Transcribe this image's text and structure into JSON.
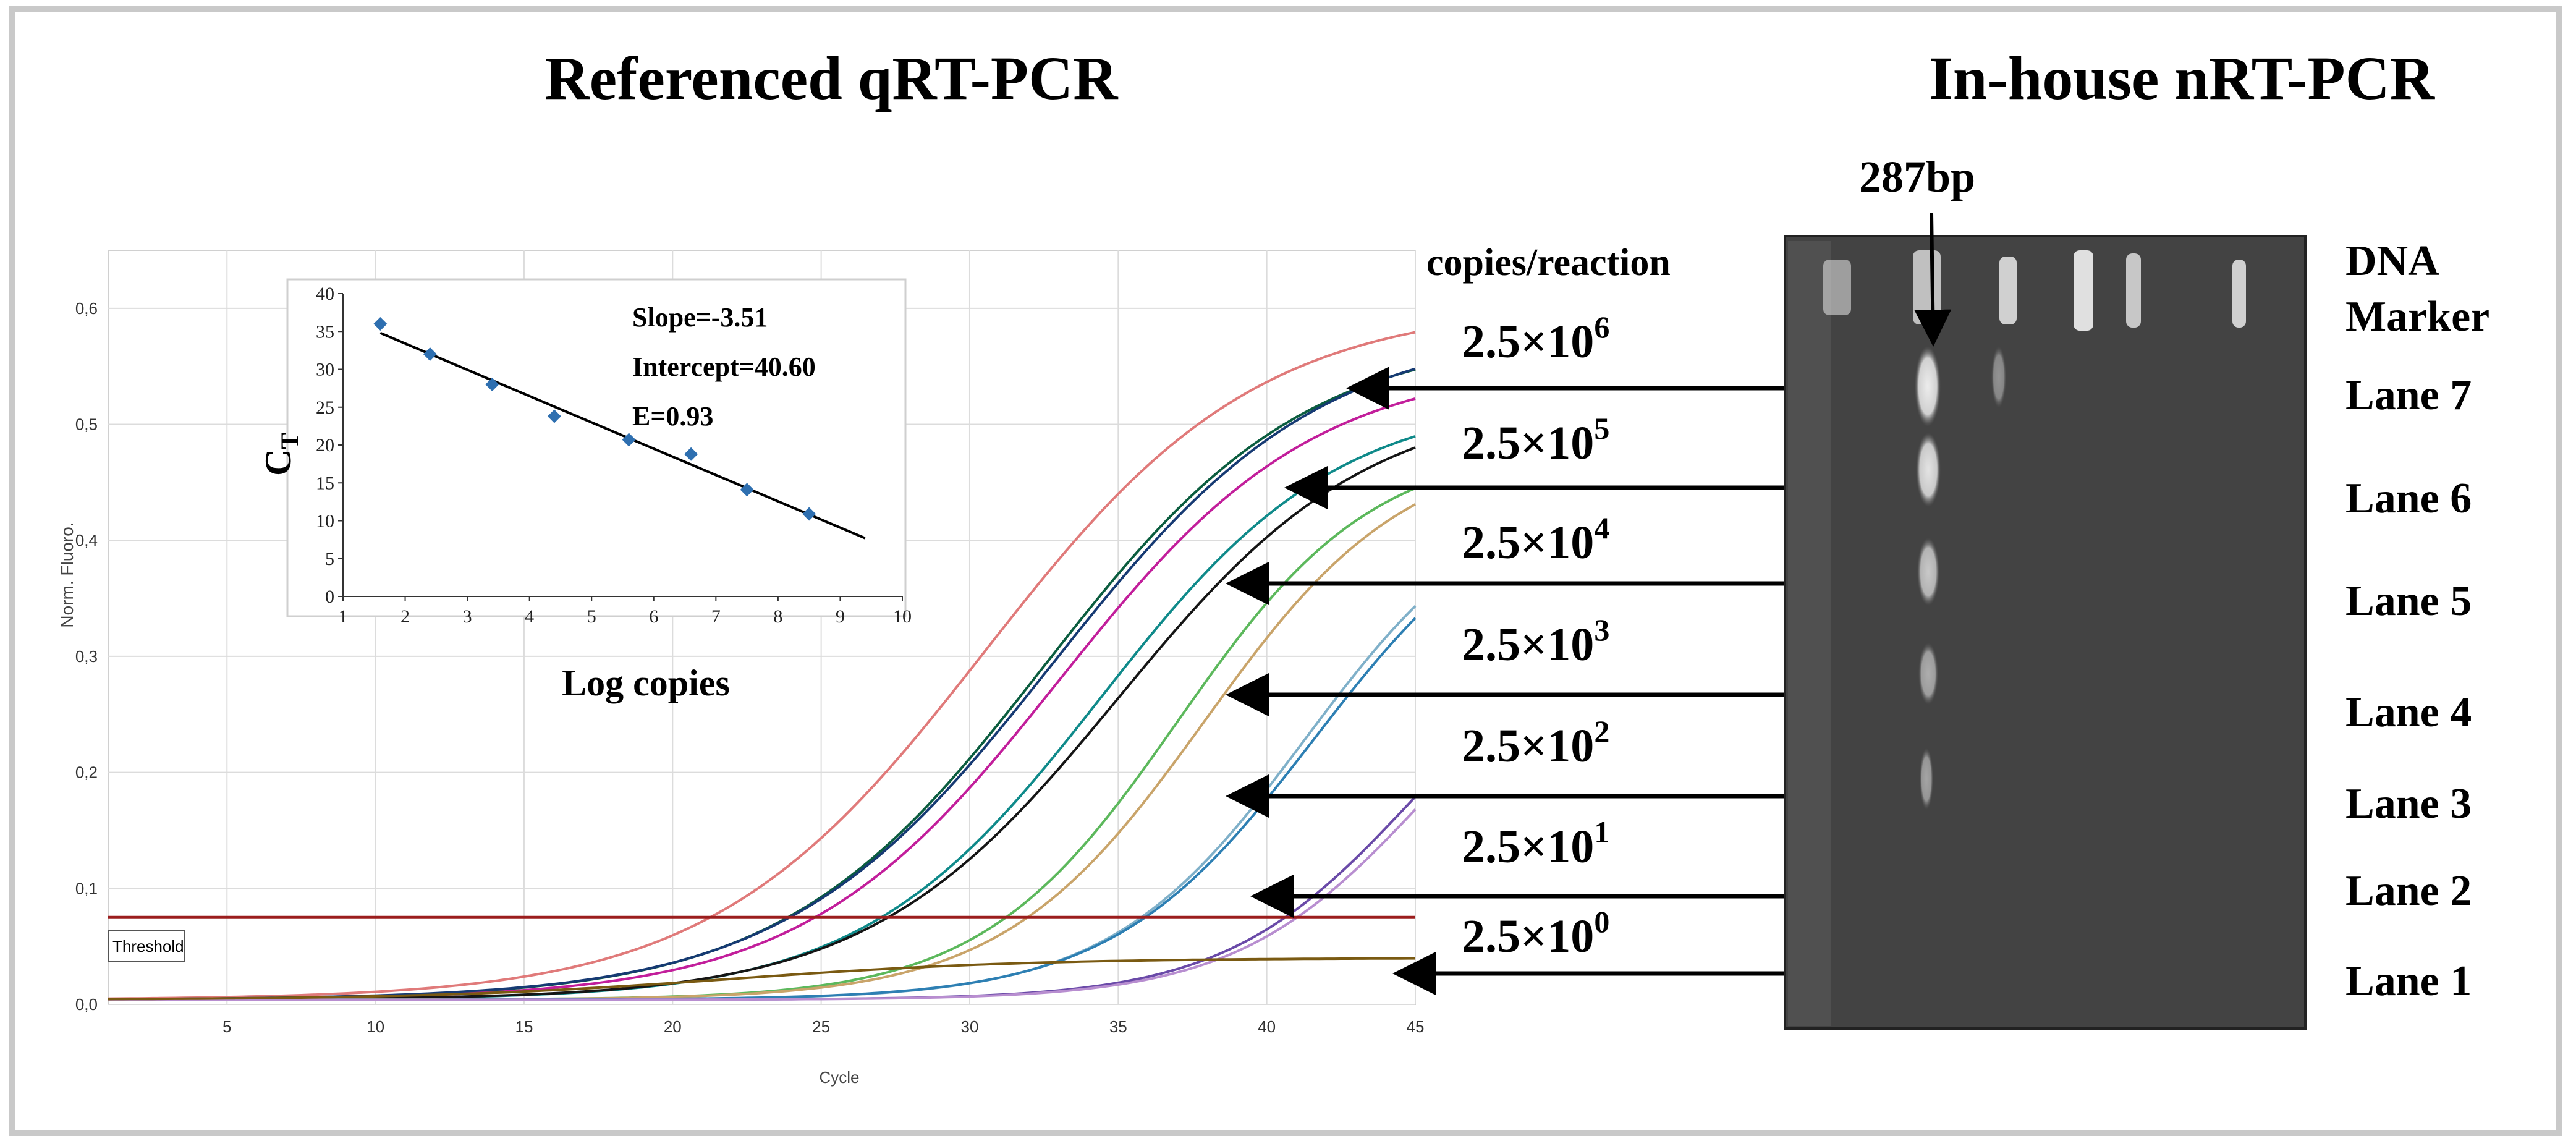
{
  "headings": {
    "left": "Referenced qRT-PCR",
    "right": "In-house nRT-PCR"
  },
  "colors": {
    "threshold": "#9b1d1d",
    "gel_background": "#434343",
    "band": "#e9e9e9",
    "arrow": "#000000",
    "fit_marker": "#2e6fb0"
  },
  "amplification_plot": {
    "type": "line",
    "xlabel": "Cycle",
    "ylabel": "Norm. Fluoro.",
    "xlim": [
      1,
      45
    ],
    "ylim": [
      0,
      0.65
    ],
    "x_ticks": [
      "5",
      "10",
      "15",
      "20",
      "25",
      "30",
      "35",
      "40",
      "45"
    ],
    "y_ticks": [
      "0,0",
      "0,1",
      "0,2",
      "0,3",
      "0,4",
      "0,5",
      "0,6"
    ],
    "threshold_label": "Threshold",
    "threshold_value": 0.075,
    "grid": true,
    "curves": [
      {
        "color": "#e07a7a",
        "plateau": 0.6,
        "midpoint_cycle": 30.5,
        "slope": 4.6
      },
      {
        "color": "#0b5d3f",
        "plateau": 0.575,
        "midpoint_cycle": 32.5,
        "slope": 4.4
      },
      {
        "color": "#163a73",
        "plateau": 0.58,
        "midpoint_cycle": 32.8,
        "slope": 4.5
      },
      {
        "color": "#c21e9b",
        "plateau": 0.55,
        "midpoint_cycle": 33.0,
        "slope": 4.3
      },
      {
        "color": "#0f8a8a",
        "plateau": 0.52,
        "midpoint_cycle": 34.4,
        "slope": 4.0
      },
      {
        "color": "#151515",
        "plateau": 0.52,
        "midpoint_cycle": 35.0,
        "slope": 4.2
      },
      {
        "color": "#5cb85c",
        "plateau": 0.48,
        "midpoint_cycle": 37.0,
        "slope": 3.3
      },
      {
        "color": "#c9a46a",
        "plateau": 0.48,
        "midpoint_cycle": 37.9,
        "slope": 3.4
      },
      {
        "color": "#7fb0c9",
        "plateau": 0.45,
        "midpoint_cycle": 41.3,
        "slope": 3.3
      },
      {
        "color": "#2d7fb3",
        "plateau": 0.45,
        "midpoint_cycle": 41.6,
        "slope": 3.4
      },
      {
        "color": "#6a4aa8",
        "plateau": 0.35,
        "midpoint_cycle": 45.0,
        "slope": 3.2
      },
      {
        "color": "#b88ed0",
        "plateau": 0.35,
        "midpoint_cycle": 45.4,
        "slope": 3.2
      },
      {
        "color": "#7a5a12",
        "plateau": 0.036,
        "midpoint_cycle": 22.0,
        "slope": 5.0
      }
    ]
  },
  "standard_curve": {
    "type": "scatter",
    "xlabel": "Log copies",
    "ylabel": "C",
    "ylabel_sub": "T",
    "xlim": [
      1,
      10
    ],
    "ylim": [
      0,
      40
    ],
    "x_ticks": [
      "1",
      "2",
      "3",
      "4",
      "5",
      "6",
      "7",
      "8",
      "9",
      "10"
    ],
    "y_ticks": [
      "0",
      "5",
      "10",
      "15",
      "20",
      "25",
      "30",
      "35",
      "40"
    ],
    "points": [
      {
        "x": 1.6,
        "y": 36.0
      },
      {
        "x": 2.4,
        "y": 32.0
      },
      {
        "x": 3.4,
        "y": 28.0
      },
      {
        "x": 4.4,
        "y": 23.8
      },
      {
        "x": 5.6,
        "y": 20.7
      },
      {
        "x": 6.6,
        "y": 18.8
      },
      {
        "x": 7.5,
        "y": 14.1
      },
      {
        "x": 8.5,
        "y": 10.9
      }
    ],
    "fit_line": {
      "x0": 1.6,
      "y0": 34.8,
      "x1": 9.4,
      "y1": 7.7
    },
    "annotations": [
      "Slope=-3.51",
      "Intercept=40.60",
      "E=0.93"
    ]
  },
  "copies": {
    "header": "copies/reaction",
    "items": [
      {
        "mantissa": "2.5×10",
        "exponent": "6"
      },
      {
        "mantissa": "2.5×10",
        "exponent": "5"
      },
      {
        "mantissa": "2.5×10",
        "exponent": "4"
      },
      {
        "mantissa": "2.5×10",
        "exponent": "3"
      },
      {
        "mantissa": "2.5×10",
        "exponent": "2"
      },
      {
        "mantissa": "2.5×10",
        "exponent": "1"
      },
      {
        "mantissa": "2.5×10",
        "exponent": "0"
      }
    ]
  },
  "gel": {
    "band_label": "287bp",
    "marker_label_line1": "DNA",
    "marker_label_line2": "Marker",
    "lanes": [
      "Lane 7",
      "Lane 6",
      "Lane 5",
      "Lane 4",
      "Lane 3",
      "Lane 2",
      "Lane 1"
    ]
  }
}
